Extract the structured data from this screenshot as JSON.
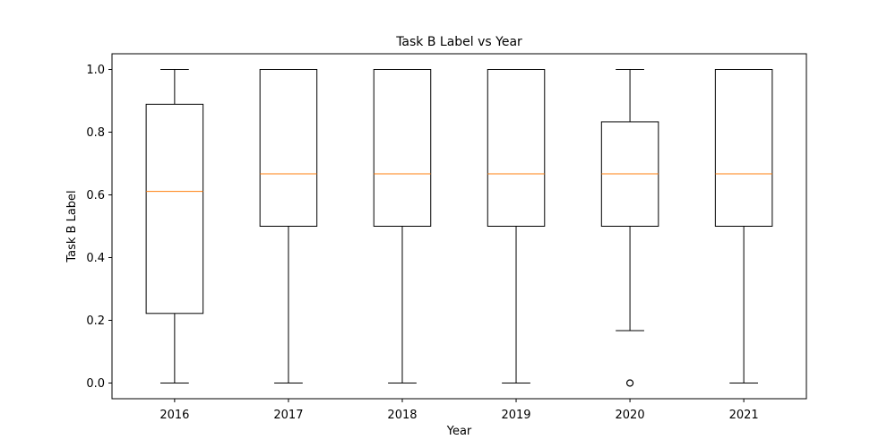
{
  "chart_data": {
    "type": "box",
    "title": "Task B Label vs Year",
    "xlabel": "Year",
    "ylabel": "Task B Label",
    "ylim": [
      -0.05,
      1.05
    ],
    "yticks": [
      0.0,
      0.2,
      0.4,
      0.6,
      0.8,
      1.0
    ],
    "ytick_labels": [
      "0.0",
      "0.2",
      "0.4",
      "0.6",
      "0.8",
      "1.0"
    ],
    "categories": [
      "2016",
      "2017",
      "2018",
      "2019",
      "2020",
      "2021"
    ],
    "boxes": [
      {
        "whisker_low": 0.0,
        "q1": 0.222,
        "median": 0.611,
        "q3": 0.889,
        "whisker_high": 1.0,
        "outliers": []
      },
      {
        "whisker_low": 0.0,
        "q1": 0.5,
        "median": 0.667,
        "q3": 1.0,
        "whisker_high": 1.0,
        "outliers": []
      },
      {
        "whisker_low": 0.0,
        "q1": 0.5,
        "median": 0.667,
        "q3": 1.0,
        "whisker_high": 1.0,
        "outliers": []
      },
      {
        "whisker_low": 0.0,
        "q1": 0.5,
        "median": 0.667,
        "q3": 1.0,
        "whisker_high": 1.0,
        "outliers": []
      },
      {
        "whisker_low": 0.167,
        "q1": 0.5,
        "median": 0.667,
        "q3": 0.833,
        "whisker_high": 1.0,
        "outliers": [
          0.0
        ]
      },
      {
        "whisker_low": 0.0,
        "q1": 0.5,
        "median": 0.667,
        "q3": 1.0,
        "whisker_high": 1.0,
        "outliers": []
      }
    ],
    "grid": false,
    "colors": {
      "box": "#000000",
      "median": "#ff7f0e",
      "outlier": "#000000"
    }
  }
}
